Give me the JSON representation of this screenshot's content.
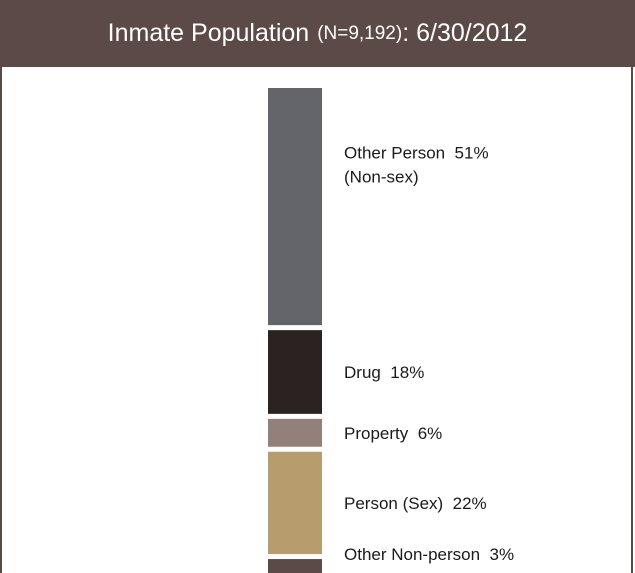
{
  "header": {
    "title_main": "Inmate Population",
    "title_n": "(N=9,192)",
    "title_date": ": 6/30/2012"
  },
  "chart_data": {
    "type": "bar",
    "stacked": true,
    "orientation": "vertical",
    "title": "Inmate Population (N=9,192): 6/30/2012",
    "total": 9192,
    "unit": "%",
    "series": [
      {
        "name": "Other Person",
        "label": "Other Person  51%",
        "sublabel": "(Non-sex)",
        "value": 51,
        "color": "#63656b"
      },
      {
        "name": "Drug",
        "label": "Drug  18%",
        "value": 18,
        "color": "#2b2222"
      },
      {
        "name": "Property",
        "label": "Property  6%",
        "value": 6,
        "color": "#94807b"
      },
      {
        "name": "Person (Sex)",
        "label": "Person (Sex)  22%",
        "value": 22,
        "color": "#b79c6d"
      },
      {
        "name": "Other Non-person",
        "label": "Other Non-person  3%",
        "value": 3,
        "color": "#5b4a45"
      }
    ]
  }
}
